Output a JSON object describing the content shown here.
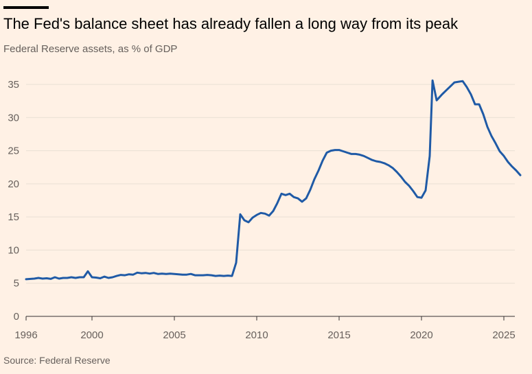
{
  "title": "The Fed's balance sheet has already fallen a long way from its peak",
  "subtitle": "Federal Reserve assets, as % of GDP",
  "source": "Source: Federal Reserve",
  "colors": {
    "background": "#fff1e5",
    "line": "#1f5aa6",
    "grid": "#e9dfd4",
    "axis": "#33302e",
    "text_muted": "#66605c"
  },
  "chart_data": {
    "type": "line",
    "title": "The Fed's balance sheet has already fallen a long way from its peak",
    "subtitle": "Federal Reserve assets, as % of GDP",
    "xlabel": "",
    "ylabel": "",
    "xlim": [
      1996,
      2025.5
    ],
    "ylim": [
      0,
      36
    ],
    "x_ticks": [
      1996,
      2000,
      2005,
      2010,
      2015,
      2020,
      2025
    ],
    "y_ticks": [
      0,
      5,
      10,
      15,
      20,
      25,
      30,
      35
    ],
    "grid": "horizontal",
    "series": [
      {
        "points": [
          [
            1996.0,
            5.6
          ],
          [
            1996.5,
            5.7
          ],
          [
            1996.75,
            5.8
          ],
          [
            1997.0,
            5.7
          ],
          [
            1997.25,
            5.75
          ],
          [
            1997.5,
            5.65
          ],
          [
            1997.75,
            5.9
          ],
          [
            1998.0,
            5.7
          ],
          [
            1998.25,
            5.8
          ],
          [
            1998.5,
            5.8
          ],
          [
            1998.75,
            5.9
          ],
          [
            1999.0,
            5.8
          ],
          [
            1999.25,
            5.9
          ],
          [
            1999.5,
            5.9
          ],
          [
            1999.75,
            6.8
          ],
          [
            2000.0,
            5.9
          ],
          [
            2000.25,
            5.85
          ],
          [
            2000.5,
            5.75
          ],
          [
            2000.75,
            6.0
          ],
          [
            2001.0,
            5.8
          ],
          [
            2001.25,
            5.9
          ],
          [
            2001.5,
            6.1
          ],
          [
            2001.75,
            6.25
          ],
          [
            2002.0,
            6.2
          ],
          [
            2002.25,
            6.35
          ],
          [
            2002.5,
            6.3
          ],
          [
            2002.75,
            6.6
          ],
          [
            2003.0,
            6.5
          ],
          [
            2003.25,
            6.55
          ],
          [
            2003.5,
            6.45
          ],
          [
            2003.75,
            6.55
          ],
          [
            2004.0,
            6.4
          ],
          [
            2004.25,
            6.45
          ],
          [
            2004.5,
            6.4
          ],
          [
            2004.75,
            6.45
          ],
          [
            2005.0,
            6.4
          ],
          [
            2005.25,
            6.35
          ],
          [
            2005.5,
            6.3
          ],
          [
            2005.75,
            6.3
          ],
          [
            2006.0,
            6.4
          ],
          [
            2006.25,
            6.2
          ],
          [
            2006.5,
            6.2
          ],
          [
            2006.75,
            6.2
          ],
          [
            2007.0,
            6.25
          ],
          [
            2007.25,
            6.2
          ],
          [
            2007.5,
            6.1
          ],
          [
            2007.75,
            6.15
          ],
          [
            2008.0,
            6.1
          ],
          [
            2008.25,
            6.15
          ],
          [
            2008.5,
            6.1
          ],
          [
            2008.75,
            8.1
          ],
          [
            2009.0,
            15.4
          ],
          [
            2009.25,
            14.5
          ],
          [
            2009.5,
            14.2
          ],
          [
            2009.75,
            14.9
          ],
          [
            2010.0,
            15.3
          ],
          [
            2010.25,
            15.6
          ],
          [
            2010.5,
            15.5
          ],
          [
            2010.75,
            15.2
          ],
          [
            2011.0,
            15.9
          ],
          [
            2011.25,
            17.1
          ],
          [
            2011.5,
            18.5
          ],
          [
            2011.75,
            18.3
          ],
          [
            2012.0,
            18.5
          ],
          [
            2012.25,
            18.0
          ],
          [
            2012.5,
            17.8
          ],
          [
            2012.75,
            17.3
          ],
          [
            2013.0,
            17.8
          ],
          [
            2013.25,
            19.1
          ],
          [
            2013.5,
            20.7
          ],
          [
            2013.75,
            22.0
          ],
          [
            2014.0,
            23.5
          ],
          [
            2014.25,
            24.7
          ],
          [
            2014.5,
            25.0
          ],
          [
            2014.75,
            25.1
          ],
          [
            2015.0,
            25.1
          ],
          [
            2015.25,
            24.9
          ],
          [
            2015.5,
            24.7
          ],
          [
            2015.75,
            24.5
          ],
          [
            2016.0,
            24.5
          ],
          [
            2016.25,
            24.4
          ],
          [
            2016.5,
            24.2
          ],
          [
            2016.75,
            23.9
          ],
          [
            2017.0,
            23.6
          ],
          [
            2017.25,
            23.4
          ],
          [
            2017.5,
            23.3
          ],
          [
            2017.75,
            23.1
          ],
          [
            2018.0,
            22.8
          ],
          [
            2018.25,
            22.4
          ],
          [
            2018.5,
            21.8
          ],
          [
            2018.75,
            21.1
          ],
          [
            2019.0,
            20.3
          ],
          [
            2019.25,
            19.7
          ],
          [
            2019.5,
            18.9
          ],
          [
            2019.75,
            18.0
          ],
          [
            2020.0,
            17.9
          ],
          [
            2020.25,
            19.0
          ],
          [
            2020.5,
            24.2
          ],
          [
            2020.67,
            35.6
          ],
          [
            2020.92,
            32.6
          ],
          [
            2021.25,
            33.5
          ],
          [
            2021.5,
            34.1
          ],
          [
            2021.75,
            34.7
          ],
          [
            2022.0,
            35.3
          ],
          [
            2022.25,
            35.4
          ],
          [
            2022.5,
            35.5
          ],
          [
            2022.75,
            34.6
          ],
          [
            2023.0,
            33.5
          ],
          [
            2023.25,
            32.0
          ],
          [
            2023.5,
            32.0
          ],
          [
            2023.75,
            30.5
          ],
          [
            2024.0,
            28.6
          ],
          [
            2024.25,
            27.2
          ],
          [
            2024.5,
            26.1
          ],
          [
            2024.75,
            24.9
          ],
          [
            2025.0,
            24.2
          ],
          [
            2025.25,
            23.3
          ],
          [
            2025.5,
            22.6
          ],
          [
            2025.75,
            22.0
          ],
          [
            2026.0,
            21.3
          ]
        ]
      }
    ]
  }
}
